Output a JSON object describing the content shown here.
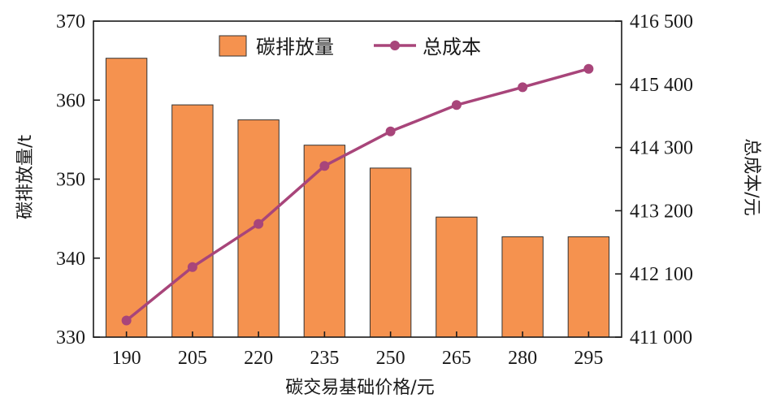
{
  "chart_data": {
    "type": "bar",
    "categories": [
      "190",
      "205",
      "220",
      "235",
      "250",
      "265",
      "280",
      "295"
    ],
    "series": [
      {
        "name": "碳排放量",
        "type": "bar",
        "axis": "left",
        "color": "#f5924f",
        "values": [
          365.3,
          359.4,
          357.5,
          354.3,
          351.4,
          345.2,
          342.7,
          342.7
        ]
      },
      {
        "name": "总成本",
        "type": "line",
        "axis": "right",
        "color": "#a8457a",
        "values": [
          411290,
          412220,
          412970,
          413980,
          414580,
          415040,
          415350,
          415670
        ]
      }
    ],
    "xlabel": "碳交易基础价格/元",
    "ylabel": "碳排放量/t",
    "y2label": "总成本/元",
    "ylim": [
      330,
      370
    ],
    "y2lim": [
      411000,
      416500
    ],
    "yticks": [
      "330",
      "340",
      "350",
      "360",
      "370"
    ],
    "y2ticks": [
      "411 000",
      "412 100",
      "413 200",
      "414 300",
      "415 400",
      "416 500"
    ],
    "legend": {
      "position": "top-center",
      "entries": [
        "碳排放量",
        "总成本"
      ]
    },
    "grid": false
  }
}
